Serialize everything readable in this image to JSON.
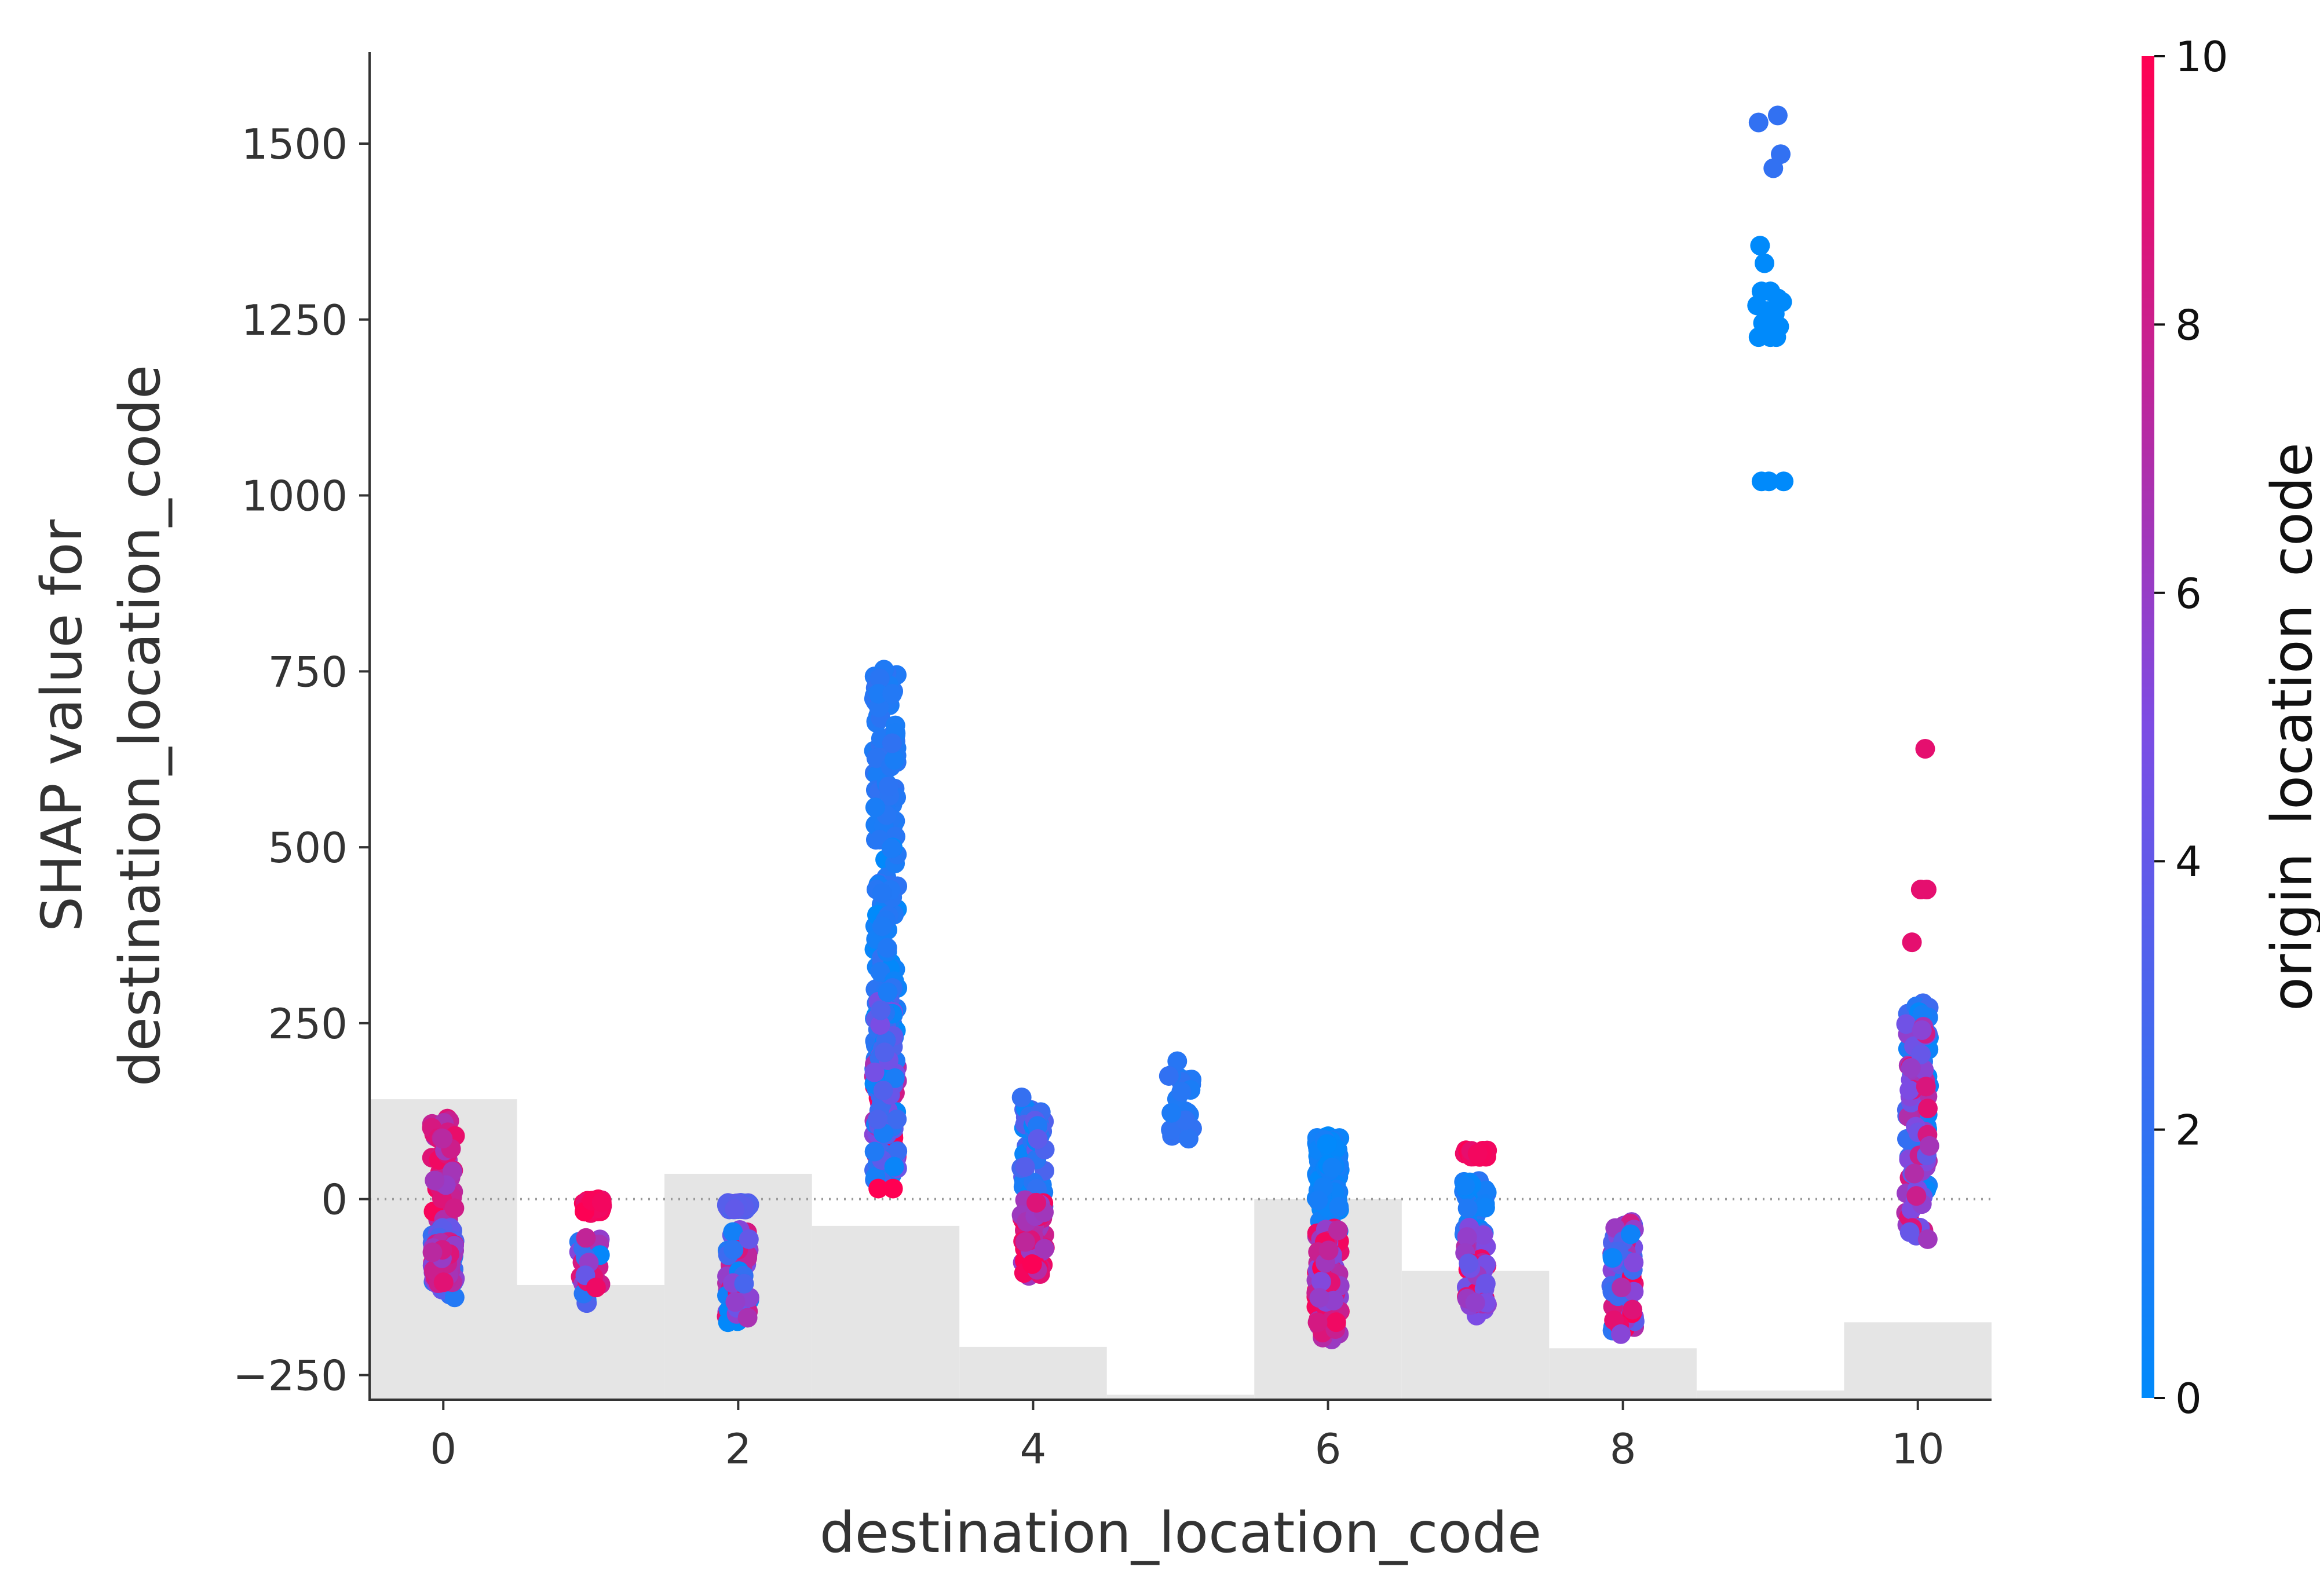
{
  "chart_data": {
    "type": "scatter",
    "title": "",
    "xlabel": "destination_location_code",
    "ylabel_line1": "SHAP value for",
    "ylabel_line2": "destination_location_code",
    "xlim": [
      -0.5,
      10.5
    ],
    "ylim": [
      -285,
      1630
    ],
    "x_ticks": [
      0,
      2,
      4,
      6,
      8,
      10
    ],
    "y_ticks": [
      -250,
      0,
      250,
      500,
      750,
      1000,
      1250,
      1500
    ],
    "y_tick_labels": [
      "−250",
      "0",
      "250",
      "500",
      "750",
      "1000",
      "1250",
      "1500"
    ],
    "zero_line": 0,
    "colorbar": {
      "label": "origin_location_code",
      "min": 0,
      "max": 10,
      "ticks": [
        0,
        2,
        4,
        6,
        8,
        10
      ],
      "color_low": "#008afb",
      "color_mid": "#7c4ce4",
      "color_high": "#ff0052"
    },
    "histogram": {
      "color": "#e5e5e5",
      "bins": [
        {
          "x0": -0.5,
          "x1": 0.5,
          "top": 142
        },
        {
          "x0": 0.5,
          "x1": 1.5,
          "top": -122
        },
        {
          "x0": 1.5,
          "x1": 2.5,
          "top": 36
        },
        {
          "x0": 2.5,
          "x1": 3.5,
          "top": -38
        },
        {
          "x0": 3.5,
          "x1": 4.5,
          "top": -210
        },
        {
          "x0": 4.5,
          "x1": 5.5,
          "top": -278
        },
        {
          "x0": 5.5,
          "x1": 6.5,
          "top": 0
        },
        {
          "x0": 6.5,
          "x1": 7.5,
          "top": -102
        },
        {
          "x0": 7.5,
          "x1": 8.5,
          "top": -212
        },
        {
          "x0": 8.5,
          "x1": 9.5,
          "top": -272
        },
        {
          "x0": 9.5,
          "x1": 10.5,
          "top": -175
        }
      ]
    },
    "clusters": [
      {
        "x": 0,
        "count": 160,
        "groups": [
          {
            "y": [
              -30,
              115
            ],
            "c": [
              6,
              10
            ]
          },
          {
            "y": [
              -140,
              -40
            ],
            "c": [
              1,
              5
            ]
          },
          {
            "y": [
              -120,
              -60
            ],
            "c": [
              5,
              9
            ]
          }
        ]
      },
      {
        "x": 1,
        "count": 60,
        "groups": [
          {
            "y": [
              -150,
              -55
            ],
            "c": [
              0,
              10
            ]
          },
          {
            "y": [
              -20,
              0
            ],
            "c": [
              9,
              10
            ]
          }
        ]
      },
      {
        "x": 2,
        "count": 110,
        "groups": [
          {
            "y": [
              -175,
              -35
            ],
            "c": [
              0,
              10
            ]
          },
          {
            "y": [
              -15,
              -5
            ],
            "c": [
              3,
              4
            ]
          }
        ]
      },
      {
        "x": 3,
        "count": 320,
        "groups": [
          {
            "y": [
              510,
              760
            ],
            "c": [
              1,
              2
            ]
          },
          {
            "y": [
              180,
              500
            ],
            "c": [
              0,
              2
            ]
          },
          {
            "y": [
              40,
              200
            ],
            "c": [
              5,
              10
            ]
          },
          {
            "y": [
              20,
              300
            ],
            "c": [
              0,
              5
            ]
          }
        ]
      },
      {
        "x": 4,
        "count": 110,
        "groups": [
          {
            "y": [
              -20,
              145
            ],
            "c": [
              0,
              4
            ]
          },
          {
            "y": [
              -110,
              0
            ],
            "c": [
              6,
              10
            ]
          }
        ]
      },
      {
        "x": 5,
        "count": 22,
        "groups": [
          {
            "y": [
              85,
              200
            ],
            "c": [
              1,
              2
            ]
          }
        ]
      },
      {
        "x": 6,
        "count": 200,
        "groups": [
          {
            "y": [
              -50,
              90
            ],
            "c": [
              0,
              1
            ]
          },
          {
            "y": [
              -200,
              -40
            ],
            "c": [
              5,
              10
            ]
          }
        ]
      },
      {
        "x": 7,
        "count": 120,
        "groups": [
          {
            "y": [
              -50,
              30
            ],
            "c": [
              0,
              2
            ]
          },
          {
            "y": [
              -170,
              -40
            ],
            "c": [
              4,
              10
            ]
          },
          {
            "y": [
              60,
              70
            ],
            "c": [
              9,
              10
            ]
          }
        ]
      },
      {
        "x": 8,
        "count": 80,
        "groups": [
          {
            "y": [
              -200,
              -30
            ],
            "c": [
              0,
              10
            ]
          }
        ]
      },
      {
        "x": 10,
        "count": 130,
        "groups": [
          {
            "y": [
              0,
              280
            ],
            "c": [
              0,
              3
            ]
          },
          {
            "y": [
              -60,
              250
            ],
            "c": [
              4,
              9
            ]
          }
        ]
      }
    ],
    "points": [
      {
        "x": 8.92,
        "y": 1530,
        "c": 2
      },
      {
        "x": 9.05,
        "y": 1540,
        "c": 2
      },
      {
        "x": 9.07,
        "y": 1485,
        "c": 2
      },
      {
        "x": 9.02,
        "y": 1465,
        "c": 2
      },
      {
        "x": 8.93,
        "y": 1355,
        "c": 0
      },
      {
        "x": 8.96,
        "y": 1330,
        "c": 0
      },
      {
        "x": 8.94,
        "y": 1290,
        "c": 0
      },
      {
        "x": 9.0,
        "y": 1290,
        "c": 0
      },
      {
        "x": 9.05,
        "y": 1280,
        "c": 0
      },
      {
        "x": 9.08,
        "y": 1275,
        "c": 0
      },
      {
        "x": 8.91,
        "y": 1270,
        "c": 0
      },
      {
        "x": 8.98,
        "y": 1262,
        "c": 0
      },
      {
        "x": 9.03,
        "y": 1258,
        "c": 0
      },
      {
        "x": 8.95,
        "y": 1245,
        "c": 0
      },
      {
        "x": 9.06,
        "y": 1240,
        "c": 0
      },
      {
        "x": 8.92,
        "y": 1225,
        "c": 0
      },
      {
        "x": 9.0,
        "y": 1225,
        "c": 0
      },
      {
        "x": 9.04,
        "y": 1225,
        "c": 0
      },
      {
        "x": 8.94,
        "y": 1020,
        "c": 0
      },
      {
        "x": 8.99,
        "y": 1020,
        "c": 0
      },
      {
        "x": 9.09,
        "y": 1020,
        "c": 0
      },
      {
        "x": 10.05,
        "y": 640,
        "c": 9
      },
      {
        "x": 10.02,
        "y": 440,
        "c": 9
      },
      {
        "x": 10.06,
        "y": 440,
        "c": 9
      },
      {
        "x": 9.96,
        "y": 365,
        "c": 9
      },
      {
        "x": 3.05,
        "y": 15,
        "c": 10
      },
      {
        "x": 2.95,
        "y": 15,
        "c": 10
      }
    ]
  }
}
